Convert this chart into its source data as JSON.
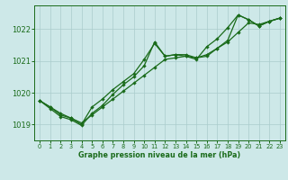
{
  "title": "Graphe pression niveau de la mer (hPa)",
  "bg_color": "#cde8e8",
  "grid_color": "#aacccc",
  "line_color": "#1a6b1a",
  "xlim": [
    -0.5,
    23.5
  ],
  "ylim": [
    1018.5,
    1022.75
  ],
  "yticks": [
    1019,
    1020,
    1021,
    1022
  ],
  "xticks": [
    0,
    1,
    2,
    3,
    4,
    5,
    6,
    7,
    8,
    9,
    10,
    11,
    12,
    13,
    14,
    15,
    16,
    17,
    18,
    19,
    20,
    21,
    22,
    23
  ],
  "series1_x": [
    0,
    1,
    2,
    3,
    4,
    5,
    6,
    7,
    8,
    9,
    10,
    11,
    12,
    13,
    14,
    15,
    16,
    17,
    18,
    19,
    20,
    21,
    22,
    23
  ],
  "series1_y": [
    1019.75,
    1019.55,
    1019.35,
    1019.2,
    1019.05,
    1019.3,
    1019.55,
    1019.8,
    1020.05,
    1020.3,
    1020.55,
    1020.8,
    1021.05,
    1021.1,
    1021.15,
    1021.1,
    1021.2,
    1021.4,
    1021.6,
    1021.9,
    1022.2,
    1022.15,
    1022.25,
    1022.35
  ],
  "series2_x": [
    0,
    1,
    2,
    3,
    4,
    5,
    6,
    7,
    8,
    9,
    10,
    11,
    12,
    13,
    14,
    15,
    16,
    17,
    18,
    19,
    20,
    21,
    22,
    23
  ],
  "series2_y": [
    1019.75,
    1019.55,
    1019.3,
    1019.2,
    1019.0,
    1019.55,
    1019.8,
    1020.1,
    1020.35,
    1020.6,
    1021.05,
    1021.55,
    1021.15,
    1021.2,
    1021.2,
    1021.1,
    1021.15,
    1021.4,
    1021.65,
    1022.45,
    1022.3,
    1022.1,
    1022.25,
    1022.35
  ],
  "series3_x": [
    0,
    1,
    2,
    3,
    4,
    5,
    6,
    7,
    8,
    9,
    10,
    11,
    12,
    13,
    14,
    15,
    16,
    17,
    18,
    19,
    20,
    21,
    22,
    23
  ],
  "series3_y": [
    1019.75,
    1019.5,
    1019.25,
    1019.15,
    1018.97,
    1019.35,
    1019.6,
    1019.95,
    1020.25,
    1020.5,
    1020.85,
    1021.6,
    1021.15,
    1021.2,
    1021.15,
    1021.05,
    1021.45,
    1021.7,
    1022.05,
    1022.45,
    1022.3,
    1022.1,
    1022.25,
    1022.35
  ]
}
